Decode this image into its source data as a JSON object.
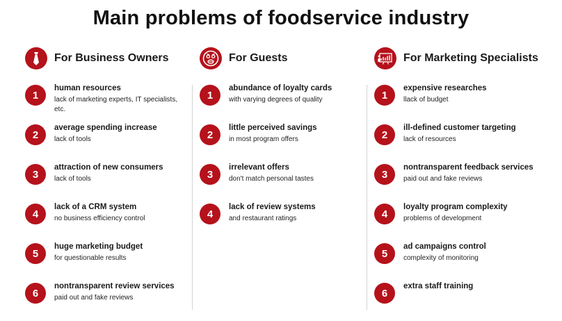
{
  "title": "Main problems of foodservice industry",
  "colors": {
    "accent": "#b5121b",
    "divider": "#d4d4d4"
  },
  "columns": [
    {
      "heading": "For Business Owners",
      "icon": "necktie-icon",
      "items": [
        {
          "number": "1",
          "title": "human resources",
          "subtitle": "lack of marketing experts, IT specialists, etc."
        },
        {
          "number": "2",
          "title": "average spending increase",
          "subtitle": "lack of tools"
        },
        {
          "number": "3",
          "title": "attraction of new consumers",
          "subtitle": "lack of tools"
        },
        {
          "number": "4",
          "title": "lack of a CRM system",
          "subtitle": "no business efficiency control"
        },
        {
          "number": "5",
          "title": "huge marketing budget",
          "subtitle": "for questionable results"
        },
        {
          "number": "6",
          "title": "nontransparent review services",
          "subtitle": "paid out and fake reviews"
        }
      ]
    },
    {
      "heading": "For Guests",
      "icon": "shocked-face-icon",
      "items": [
        {
          "number": "1",
          "title": "abundance of loyalty cards",
          "subtitle": "with varying degrees of quality"
        },
        {
          "number": "2",
          "title": "little perceived savings",
          "subtitle": "in most program offers"
        },
        {
          "number": "3",
          "title": "irrelevant offers",
          "subtitle": "don't match personal tastes"
        },
        {
          "number": "4",
          "title": "lack of review systems",
          "subtitle": "and restaurant ratings"
        }
      ]
    },
    {
      "heading": "For Marketing Specialists",
      "icon": "presentation-chart-icon",
      "items": [
        {
          "number": "1",
          "title": "expensive researches",
          "subtitle": "llack of budget"
        },
        {
          "number": "2",
          "title": "ill-defined customer targeting",
          "subtitle": "lack of resources"
        },
        {
          "number": "3",
          "title": "nontransparent feedback services",
          "subtitle": "paid out and fake reviews"
        },
        {
          "number": "4",
          "title": "loyalty program complexity",
          "subtitle": "problems of development"
        },
        {
          "number": "5",
          "title": "ad campaigns control",
          "subtitle": "complexity of monitoring"
        },
        {
          "number": "6",
          "title": "extra staff training",
          "subtitle": ""
        }
      ]
    }
  ]
}
